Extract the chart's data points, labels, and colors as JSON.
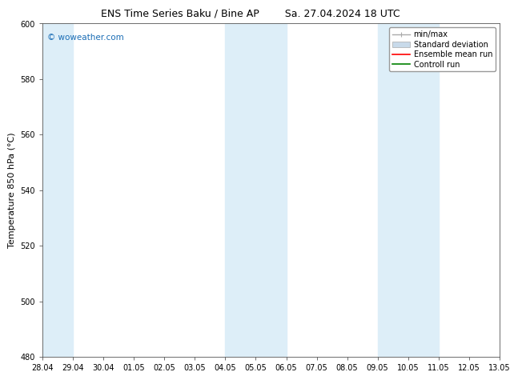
{
  "title_left": "ENS Time Series Baku / Bine AP",
  "title_right": "Sa. 27.04.2024 18 UTC",
  "ylabel": "Temperature 850 hPa (°C)",
  "ylim": [
    480,
    600
  ],
  "yticks": [
    480,
    500,
    520,
    540,
    560,
    580,
    600
  ],
  "xtick_labels": [
    "28.04",
    "29.04",
    "30.04",
    "01.05",
    "02.05",
    "03.05",
    "04.05",
    "05.05",
    "06.05",
    "07.05",
    "08.05",
    "09.05",
    "10.05",
    "11.05",
    "12.05",
    "13.05"
  ],
  "num_xticks": 16,
  "xlim": [
    0,
    15
  ],
  "shaded_bands": [
    {
      "x_start": 0.0,
      "x_end": 1.0,
      "color": "#ddeef8"
    },
    {
      "x_start": 6.0,
      "x_end": 8.0,
      "color": "#ddeef8"
    },
    {
      "x_start": 11.0,
      "x_end": 13.0,
      "color": "#ddeef8"
    }
  ],
  "watermark_text": "© woweather.com",
  "watermark_color": "#1a6db5",
  "legend_labels": [
    "min/max",
    "Standard deviation",
    "Ensemble mean run",
    "Controll run"
  ],
  "legend_colors": [
    "#aaaaaa",
    "#c8daea",
    "red",
    "green"
  ],
  "bg_color": "#ffffff",
  "title_fontsize": 9,
  "tick_fontsize": 7,
  "ylabel_fontsize": 8
}
